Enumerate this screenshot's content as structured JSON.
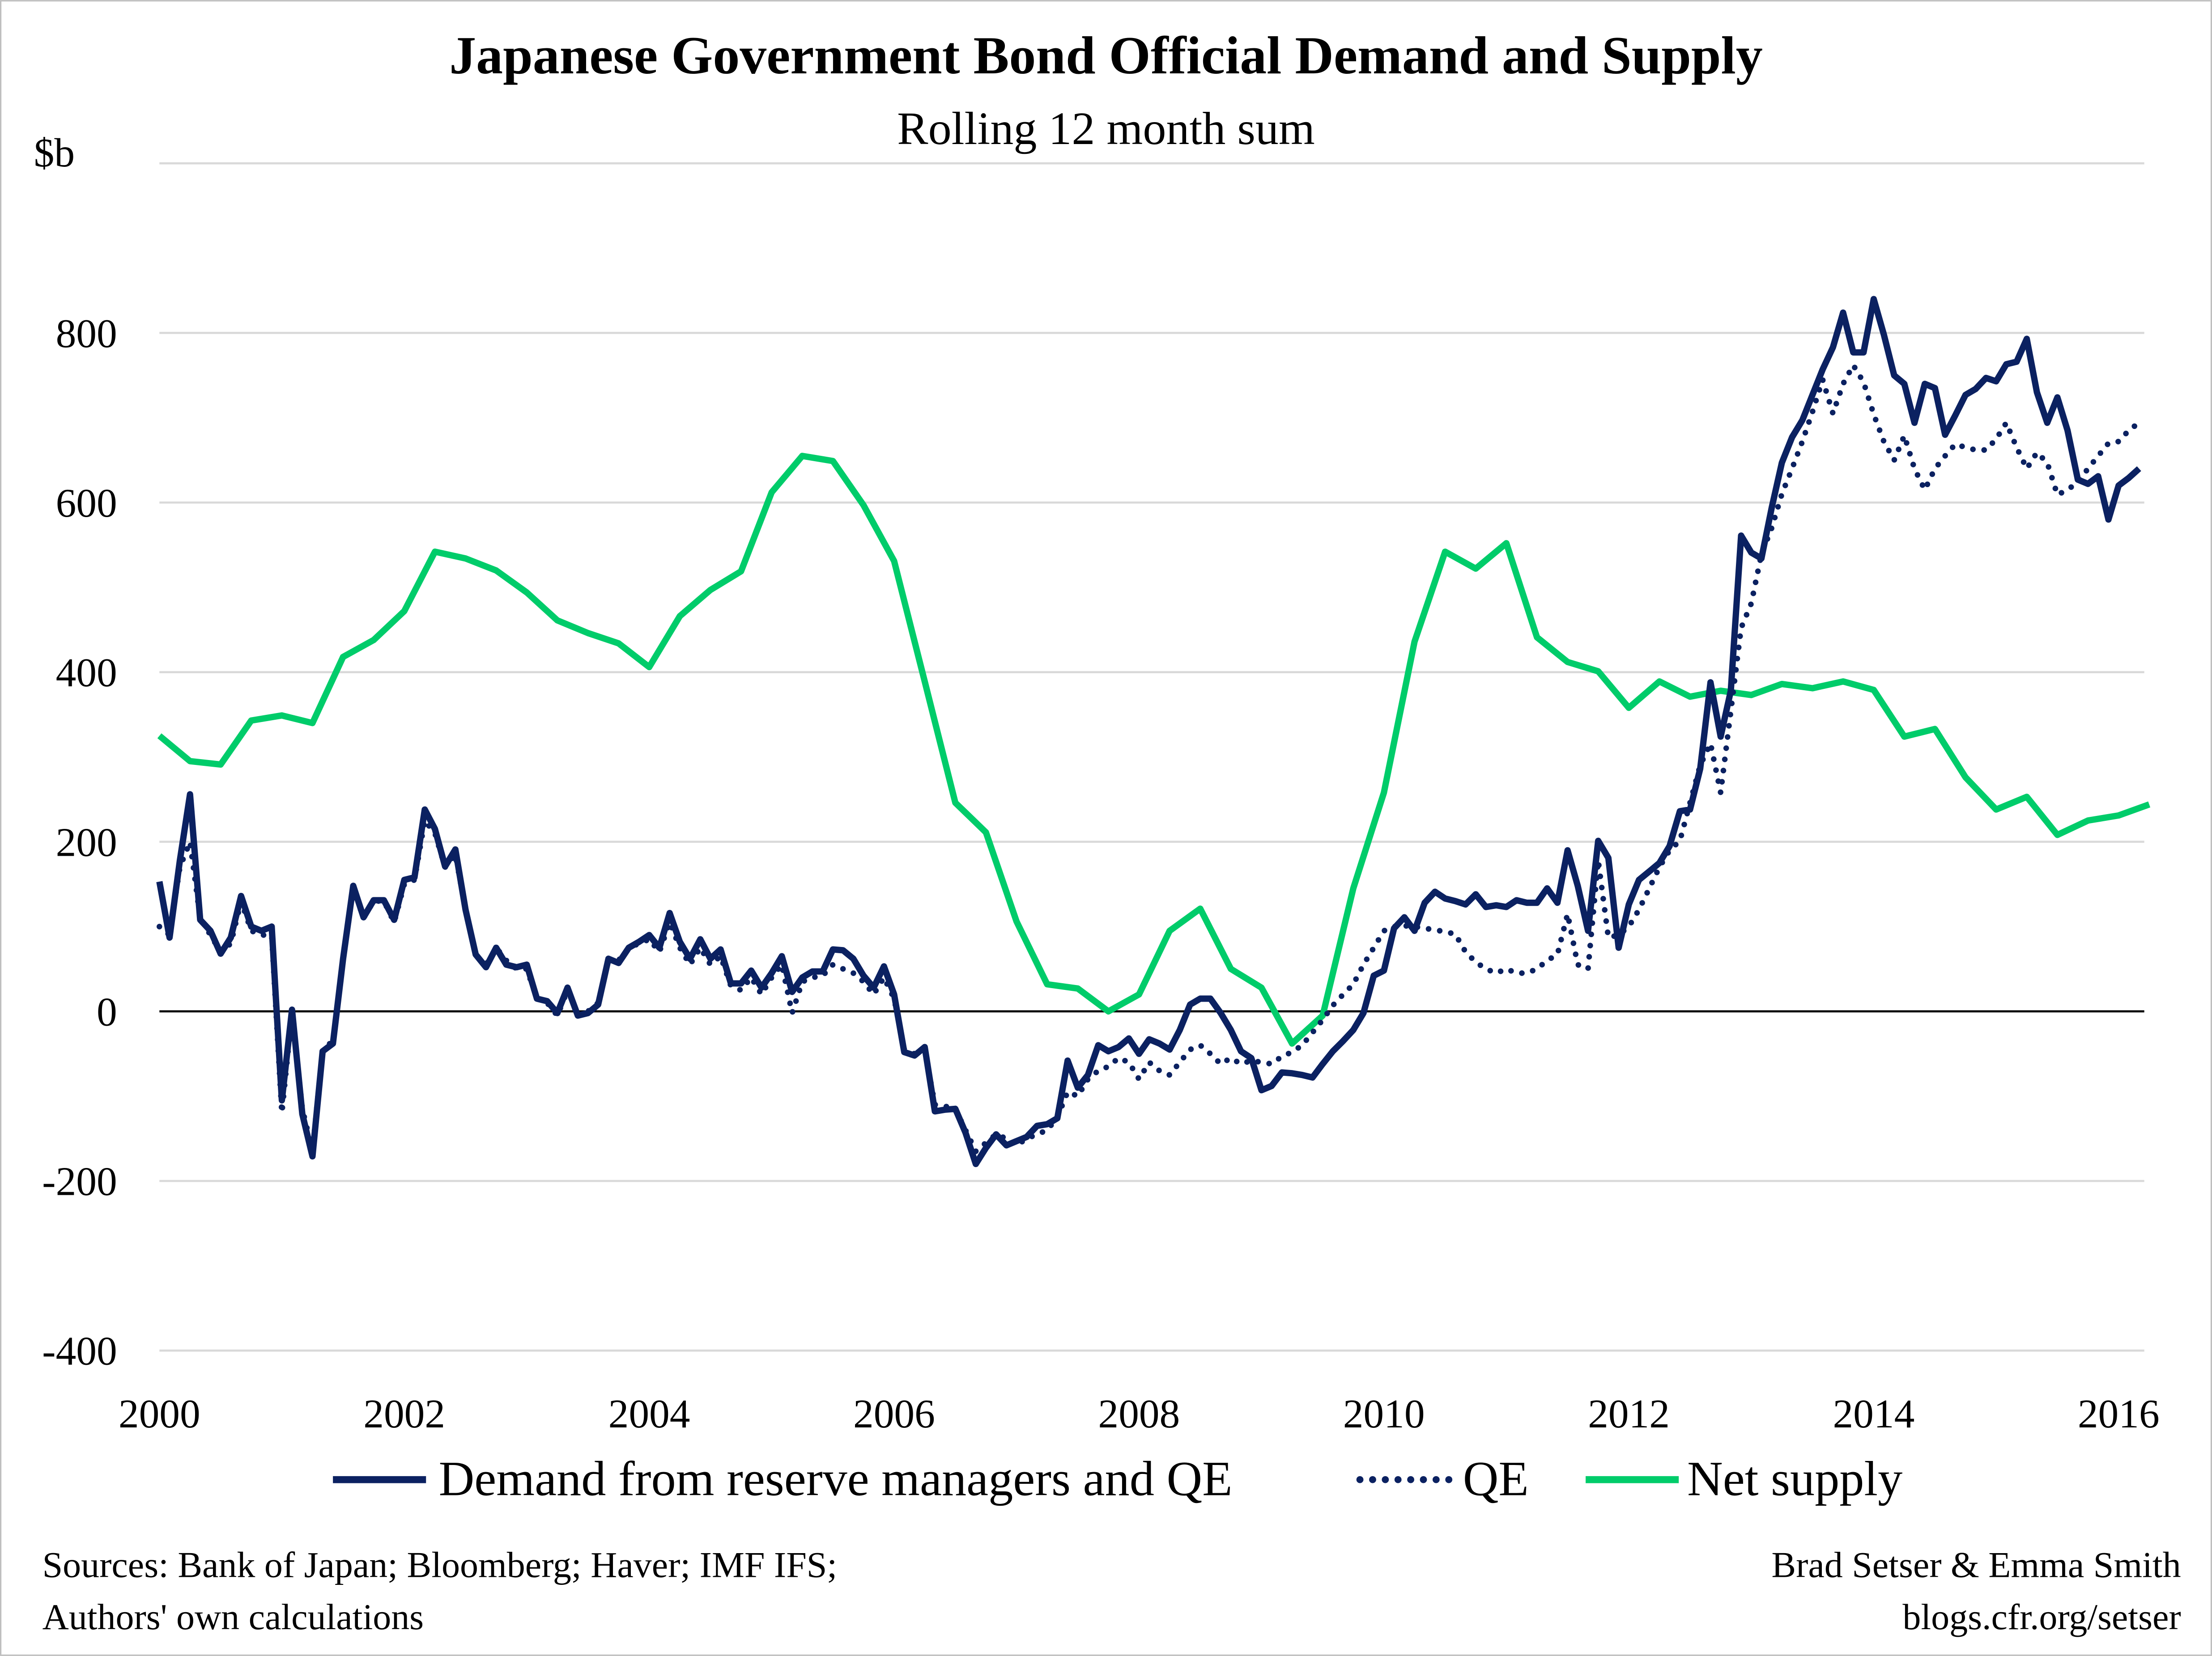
{
  "chart_data": {
    "type": "line",
    "title": "Japanese Government Bond Official Demand and Supply",
    "subtitle": "Rolling 12 month sum",
    "ylabel": "$b",
    "xlabel": "",
    "ylim": [
      -400,
      1000
    ],
    "xlim": [
      2000,
      2016.25
    ],
    "yticks": [
      "800",
      "600",
      "400",
      "200",
      "0",
      "-200",
      "-400"
    ],
    "ytick_values": [
      800,
      600,
      400,
      200,
      0,
      -200,
      -400
    ],
    "gridline_values": [
      1000,
      800,
      600,
      400,
      200,
      -200,
      -400
    ],
    "xticks": [
      "2000",
      "2002",
      "2004",
      "2006",
      "2008",
      "2010",
      "2012",
      "2014",
      "2016"
    ],
    "grid": true,
    "legend_position": "bottom",
    "series": [
      {
        "name": "Demand from reserve managers and QE",
        "color": "#0b2161",
        "style": "solid",
        "frequency": "monthly",
        "values_by_year": {
          "2000": [
            153,
            87,
            178,
            256,
            108,
            95,
            68,
            87,
            136,
            100,
            95,
            100
          ],
          "2001": [
            -105,
            2,
            -121,
            -171,
            -47,
            -38,
            62,
            148,
            111,
            131,
            131,
            108
          ],
          "2002": [
            155,
            158,
            238,
            215,
            171,
            191,
            120,
            67,
            52,
            75,
            55,
            52
          ],
          "2003": [
            55,
            15,
            12,
            -2,
            28,
            -5,
            -2,
            8,
            62,
            57,
            75,
            82
          ],
          "2004": [
            90,
            75,
            116,
            82,
            62,
            85,
            62,
            73,
            33,
            33,
            48,
            28
          ],
          "2005": [
            45,
            65,
            23,
            40,
            47,
            47,
            73,
            72,
            62,
            42,
            28,
            53
          ],
          "2006": [
            20,
            -48,
            -52,
            -42,
            -118,
            -116,
            -115,
            -143,
            -180,
            -161,
            -145,
            -158
          ],
          "2007": [
            -153,
            -148,
            -135,
            -133,
            -126,
            -58,
            -90,
            -75,
            -40,
            -47,
            -42,
            -32
          ],
          "2008": [
            -50,
            -33,
            -38,
            -45,
            -22,
            8,
            15,
            15,
            -2,
            -22,
            -47,
            -55
          ],
          "2009": [
            -93,
            -88,
            -72,
            -73,
            -75,
            -78,
            -62,
            -47,
            -35,
            -22,
            -2,
            42
          ],
          "2010": [
            48,
            98,
            111,
            95,
            128,
            141,
            133,
            130,
            126,
            138,
            123,
            125
          ],
          "2011": [
            123,
            131,
            128,
            128,
            145,
            128,
            190,
            148,
            95,
            201,
            181,
            75
          ],
          "2012": [
            126,
            155,
            165,
            175,
            195,
            236,
            238,
            286,
            388,
            324,
            378,
            561
          ],
          "2013": [
            541,
            534,
            594,
            647,
            677,
            697,
            727,
            757,
            783,
            824,
            777,
            777
          ],
          "2014": [
            840,
            798,
            750,
            740,
            694,
            740,
            735,
            680,
            703,
            727,
            734,
            747
          ],
          "2015": [
            743,
            763,
            766,
            793,
            730,
            694,
            724,
            685,
            627,
            622,
            631,
            580
          ],
          "2016": [
            620,
            629,
            640
          ]
        }
      },
      {
        "name": "QE",
        "color": "#0b2161",
        "style": "dotted",
        "frequency": "monthly",
        "values_by_year": {
          "2000": [
            100,
            90,
            170,
            200,
            110,
            90,
            70,
            80,
            130,
            95,
            90,
            90
          ],
          "2001": [
            -120,
            0,
            -115,
            -165,
            -45,
            -35,
            60,
            145,
            110,
            130,
            130,
            105
          ],
          "2002": [
            150,
            155,
            225,
            210,
            170,
            185,
            120,
            65,
            55,
            75,
            60,
            50
          ],
          "2003": [
            50,
            15,
            10,
            -5,
            25,
            -3,
            0,
            10,
            60,
            60,
            75,
            80
          ],
          "2004": [
            85,
            70,
            105,
            75,
            55,
            75,
            55,
            65,
            30,
            25,
            40,
            20
          ],
          "2005": [
            40,
            55,
            -2,
            35,
            40,
            42,
            55,
            50,
            45,
            35,
            20,
            40
          ],
          "2006": [
            15,
            -45,
            -50,
            -45,
            -110,
            -112,
            -115,
            -140,
            -165,
            -155,
            -145,
            -150
          ],
          "2007": [
            -158,
            -150,
            -145,
            -140,
            -125,
            -95,
            -100,
            -80,
            -70,
            -65,
            -55,
            -60
          ],
          "2008": [
            -80,
            -60,
            -70,
            -75,
            -60,
            -45,
            -40,
            -50,
            -62,
            -55,
            -62,
            -58
          ],
          "2009": [
            -60,
            -62,
            -53,
            -48,
            -40,
            -25,
            -10,
            7,
            20,
            32,
            55,
            75
          ],
          "2010": [
            95,
            100,
            101,
            100,
            98,
            96,
            94,
            91,
            70,
            58,
            50,
            45
          ],
          "2011": [
            50,
            45,
            45,
            50,
            60,
            67,
            115,
            55,
            50,
            178,
            87,
            90
          ],
          "2012": [
            100,
            120,
            145,
            170,
            190,
            201,
            246,
            290,
            316,
            258,
            354,
            452
          ],
          "2013": [
            481,
            539,
            570,
            610,
            640,
            672,
            707,
            745,
            705,
            740,
            762,
            742
          ],
          "2014": [
            704,
            672,
            650,
            679,
            640,
            615,
            640,
            655,
            669,
            665,
            662,
            662
          ],
          "2015": [
            675,
            694,
            665,
            640,
            659,
            647,
            609,
            615,
            624,
            640,
            655,
            670
          ],
          "2016": [
            672,
            685,
            694
          ]
        }
      },
      {
        "name": "Net supply",
        "color": "#00cc6a",
        "style": "solid",
        "frequency": "quarterly",
        "values_by_year": {
          "2000": [
            325,
            295,
            291,
            343
          ],
          "2001": [
            349,
            340,
            418,
            438
          ],
          "2002": [
            472,
            542,
            534,
            520
          ],
          "2003": [
            494,
            461,
            446,
            434
          ],
          "2004": [
            406,
            466,
            497,
            519
          ],
          "2005": [
            612,
            655,
            649,
            597
          ],
          "2006": [
            531,
            389,
            246,
            211
          ],
          "2007": [
            106,
            32,
            27,
            0
          ],
          "2008": [
            20,
            95,
            121,
            50
          ],
          "2009": [
            28,
            -38,
            -5,
            145
          ],
          "2010": [
            258,
            436,
            542,
            522
          ],
          "2011": [
            552,
            441,
            412,
            401
          ],
          "2012": [
            358,
            389,
            371,
            378
          ],
          "2013": [
            373,
            386,
            381,
            389
          ],
          "2014": [
            379,
            324,
            333,
            276
          ],
          "2015": [
            238,
            253,
            208,
            225
          ],
          "2016": [
            231,
            244
          ]
        }
      }
    ]
  },
  "footer": {
    "sources_line1": "Sources: Bank of Japan; Bloomberg; Haver; IMF IFS;",
    "sources_line2": "Authors' own calculations",
    "authors": "Brad Setser & Emma Smith",
    "url": "blogs.cfr.org/setser"
  }
}
